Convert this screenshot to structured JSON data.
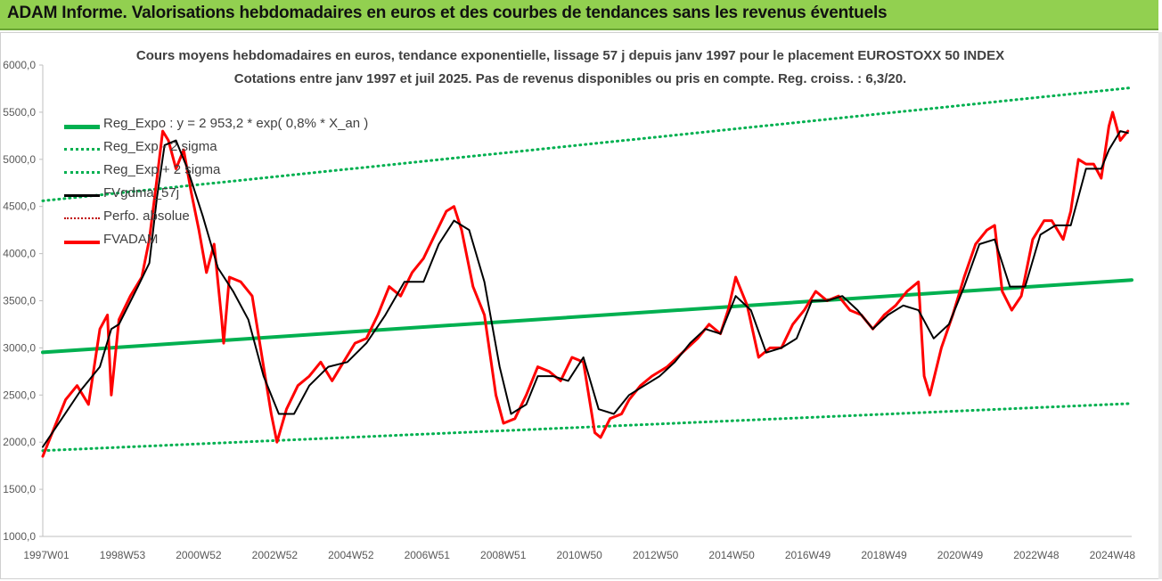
{
  "header": {
    "title": "ADAM Informe. Valorisations hebdomadaires en euros et des courbes de tendances sans les revenus éventuels"
  },
  "colors": {
    "banner": "#92d050",
    "reg_expo": "#00b050",
    "sigma": "#00b050",
    "fvgdma": "#000000",
    "perfo": "#c00000",
    "fvadam": "#ff0000"
  },
  "chart_data": {
    "type": "line",
    "title": "Cours moyens hebdomadaires en euros, tendance exponentielle, lissage 57 j depuis janv 1997  pour le placement EUROSTOXX 50 INDEX",
    "subtitle": "Cotations entre janv 1997 et juil 2025. Pas de revenus disponibles ou pris en compte. Reg.  croiss. : 6,3/20.",
    "xlabel": "",
    "ylabel": "",
    "ylim": [
      1000,
      6000
    ],
    "xlim": [
      1997.0,
      2025.6
    ],
    "y_ticks": [
      "6000,0",
      "5500,0",
      "5000,0",
      "4500,0",
      "4000,0",
      "3500,0",
      "3000,0",
      "2500,0",
      "2000,0",
      "1500,0",
      "1000,0"
    ],
    "y_tick_values": [
      6000,
      5500,
      5000,
      4500,
      4000,
      3500,
      3000,
      2500,
      2000,
      1500,
      1000
    ],
    "x_ticks": [
      "1997W01",
      "1998W53",
      "2000W52",
      "2002W52",
      "2004W52",
      "2006W51",
      "2008W51",
      "2010W50",
      "2012W50",
      "2014W50",
      "2016W49",
      "2018W49",
      "2020W49",
      "2022W48",
      "2024W48"
    ],
    "x_tick_values": [
      1997.0,
      1999.0,
      2001.0,
      2003.0,
      2005.0,
      2007.0,
      2009.0,
      2011.0,
      2013.0,
      2015.0,
      2017.0,
      2019.0,
      2021.0,
      2023.0,
      2025.0
    ],
    "grid": false,
    "legend_position": "top-left",
    "legend": [
      "Reg_Expo  : y = 2 953,2 * exp( 0,8% *  X_an )",
      "Reg_Exp - 2 sigma",
      "Reg_Exp + 2 sigma",
      "FVgdma_57j",
      "Perfo. absolue",
      "FVADAM"
    ],
    "series": [
      {
        "name": "Reg_Expo  : y = 2 953,2 * exp( 0,8% *  X_an )",
        "x": [
          1997.0,
          2025.6
        ],
        "y": [
          2953.2,
          3720
        ]
      },
      {
        "name": "Reg_Exp - 2 sigma",
        "x": [
          1997.0,
          2025.6
        ],
        "y": [
          1910,
          2410
        ]
      },
      {
        "name": "Reg_Exp + 2 sigma",
        "x": [
          1997.0,
          2025.6
        ],
        "y": [
          4560,
          5760
        ]
      },
      {
        "name": "FVgdma_57j",
        "x": [
          1997.0,
          1997.5,
          1998.0,
          1998.5,
          1998.8,
          1999.0,
          1999.5,
          1999.8,
          2000.0,
          2000.2,
          2000.5,
          2000.8,
          2001.2,
          2001.6,
          2002.0,
          2002.4,
          2002.8,
          2003.2,
          2003.6,
          2004.0,
          2004.5,
          2005.0,
          2005.5,
          2006.0,
          2006.5,
          2007.0,
          2007.4,
          2007.8,
          2008.2,
          2008.6,
          2009.0,
          2009.3,
          2009.7,
          2010.0,
          2010.4,
          2010.8,
          2011.2,
          2011.6,
          2012.0,
          2012.4,
          2012.8,
          2013.2,
          2013.6,
          2014.0,
          2014.4,
          2014.8,
          2015.2,
          2015.6,
          2016.0,
          2016.4,
          2016.8,
          2017.2,
          2017.6,
          2018.0,
          2018.4,
          2018.8,
          2019.2,
          2019.6,
          2020.0,
          2020.4,
          2020.8,
          2021.2,
          2021.6,
          2022.0,
          2022.4,
          2022.8,
          2023.2,
          2023.6,
          2024.0,
          2024.4,
          2024.8,
          2025.0,
          2025.3,
          2025.5
        ],
        "y": [
          1950,
          2250,
          2550,
          2800,
          3200,
          3250,
          3650,
          3900,
          4600,
          5150,
          5200,
          4900,
          4400,
          3850,
          3600,
          3300,
          2700,
          2300,
          2300,
          2600,
          2800,
          2850,
          3050,
          3350,
          3700,
          3700,
          4100,
          4350,
          4250,
          3700,
          2800,
          2300,
          2400,
          2700,
          2700,
          2650,
          2900,
          2350,
          2300,
          2500,
          2600,
          2700,
          2850,
          3050,
          3200,
          3150,
          3550,
          3400,
          2950,
          3000,
          3100,
          3500,
          3500,
          3550,
          3400,
          3200,
          3350,
          3450,
          3400,
          3100,
          3250,
          3650,
          4100,
          4150,
          3650,
          3650,
          4200,
          4300,
          4300,
          4900,
          4900,
          5100,
          5300,
          5280
        ]
      },
      {
        "name": "FVADAM",
        "x": [
          1997.0,
          1997.3,
          1997.6,
          1997.9,
          1998.2,
          1998.5,
          1998.7,
          1998.8,
          1999.0,
          1999.3,
          1999.6,
          1999.8,
          2000.0,
          2000.15,
          2000.3,
          2000.5,
          2000.7,
          2000.9,
          2001.1,
          2001.3,
          2001.5,
          2001.7,
          2001.75,
          2001.9,
          2002.2,
          2002.5,
          2002.8,
          2003.0,
          2003.15,
          2003.4,
          2003.7,
          2004.0,
          2004.3,
          2004.6,
          2004.9,
          2005.2,
          2005.5,
          2005.8,
          2006.1,
          2006.4,
          2006.7,
          2007.0,
          2007.3,
          2007.6,
          2007.8,
          2008.0,
          2008.3,
          2008.6,
          2008.9,
          2009.1,
          2009.4,
          2009.7,
          2010.0,
          2010.3,
          2010.6,
          2010.9,
          2011.2,
          2011.5,
          2011.65,
          2011.9,
          2012.2,
          2012.4,
          2012.7,
          2013.0,
          2013.4,
          2013.8,
          2014.2,
          2014.5,
          2014.8,
          2015.0,
          2015.2,
          2015.5,
          2015.8,
          2016.1,
          2016.4,
          2016.7,
          2017.0,
          2017.3,
          2017.6,
          2017.9,
          2018.2,
          2018.5,
          2018.8,
          2019.1,
          2019.4,
          2019.7,
          2020.0,
          2020.15,
          2020.3,
          2020.6,
          2020.9,
          2021.2,
          2021.5,
          2021.8,
          2022.0,
          2022.2,
          2022.45,
          2022.7,
          2023.0,
          2023.3,
          2023.5,
          2023.8,
          2024.0,
          2024.2,
          2024.4,
          2024.6,
          2024.8,
          2025.0,
          2025.1,
          2025.3,
          2025.5
        ],
        "y": [
          1850,
          2150,
          2450,
          2600,
          2400,
          3200,
          3350,
          2500,
          3300,
          3550,
          3750,
          4150,
          4800,
          5300,
          5200,
          4900,
          5100,
          4650,
          4250,
          3800,
          4100,
          3300,
          3050,
          3750,
          3700,
          3550,
          2800,
          2300,
          2000,
          2350,
          2600,
          2700,
          2850,
          2650,
          2850,
          3050,
          3100,
          3350,
          3650,
          3550,
          3800,
          3950,
          4200,
          4450,
          4500,
          4250,
          3650,
          3350,
          2500,
          2200,
          2250,
          2500,
          2800,
          2750,
          2650,
          2900,
          2850,
          2100,
          2050,
          2250,
          2300,
          2450,
          2600,
          2700,
          2800,
          2950,
          3100,
          3250,
          3150,
          3400,
          3750,
          3450,
          2900,
          3000,
          3000,
          3250,
          3400,
          3600,
          3500,
          3550,
          3400,
          3350,
          3200,
          3350,
          3450,
          3600,
          3700,
          2700,
          2500,
          3000,
          3350,
          3750,
          4100,
          4250,
          4300,
          3600,
          3400,
          3550,
          4150,
          4350,
          4350,
          4150,
          4450,
          5000,
          4950,
          4950,
          4800,
          5350,
          5500,
          5200,
          5300
        ]
      }
    ]
  }
}
